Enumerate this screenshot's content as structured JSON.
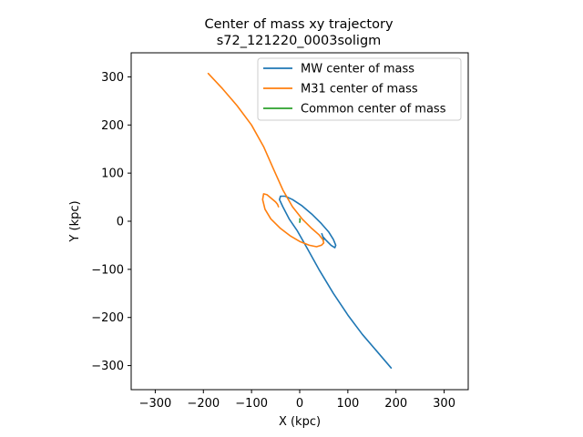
{
  "chart_data": {
    "type": "line",
    "title": "Center of mass xy trajectory",
    "subtitle": "s72_121220_0003soligm",
    "xlabel": "X (kpc)",
    "ylabel": "Y (kpc)",
    "xlim": [
      -350,
      350
    ],
    "ylim": [
      -350,
      350
    ],
    "xticks": [
      -300,
      -200,
      -100,
      0,
      100,
      200,
      300
    ],
    "yticks": [
      -300,
      -200,
      -100,
      0,
      100,
      200,
      300
    ],
    "xtick_labels": [
      "−300",
      "−200",
      "−100",
      "0",
      "100",
      "200",
      "300"
    ],
    "ytick_labels": [
      "−300",
      "−200",
      "−100",
      "0",
      "100",
      "200",
      "300"
    ],
    "grid": false,
    "legend_position": "top-right",
    "series": [
      {
        "name": "MW center of mass",
        "color": "#1f77b4",
        "x": [
          190,
          160,
          130,
          100,
          70,
          40,
          15,
          -5,
          -22,
          -35,
          -42,
          -40,
          -30,
          -15,
          5,
          25,
          45,
          60,
          70,
          75,
          73,
          65,
          55,
          48,
          46,
          48,
          50
        ],
        "y": [
          -305,
          -270,
          -235,
          -195,
          -150,
          -100,
          -55,
          -20,
          5,
          30,
          45,
          52,
          52,
          45,
          32,
          15,
          -5,
          -22,
          -38,
          -50,
          -55,
          -50,
          -40,
          -32,
          -26,
          -32,
          -38
        ]
      },
      {
        "name": "M31 center of mass",
        "color": "#ff7f0e",
        "x": [
          -190,
          -160,
          -130,
          -100,
          -75,
          -55,
          -35,
          -15,
          5,
          25,
          40,
          48,
          50,
          45,
          35,
          20,
          0,
          -20,
          -40,
          -60,
          -72,
          -77,
          -75,
          -68,
          -58,
          -50,
          -46,
          -44
        ],
        "y": [
          307,
          275,
          240,
          200,
          155,
          110,
          65,
          30,
          5,
          -15,
          -28,
          -38,
          -45,
          -50,
          -53,
          -50,
          -42,
          -30,
          -15,
          5,
          25,
          45,
          57,
          55,
          47,
          40,
          35,
          30
        ]
      },
      {
        "name": "Common center of mass",
        "color": "#2ca02c",
        "x": [
          0,
          0.3,
          0.6,
          0.5,
          0.2
        ],
        "y": [
          -2,
          0,
          2,
          4,
          5
        ]
      }
    ]
  }
}
